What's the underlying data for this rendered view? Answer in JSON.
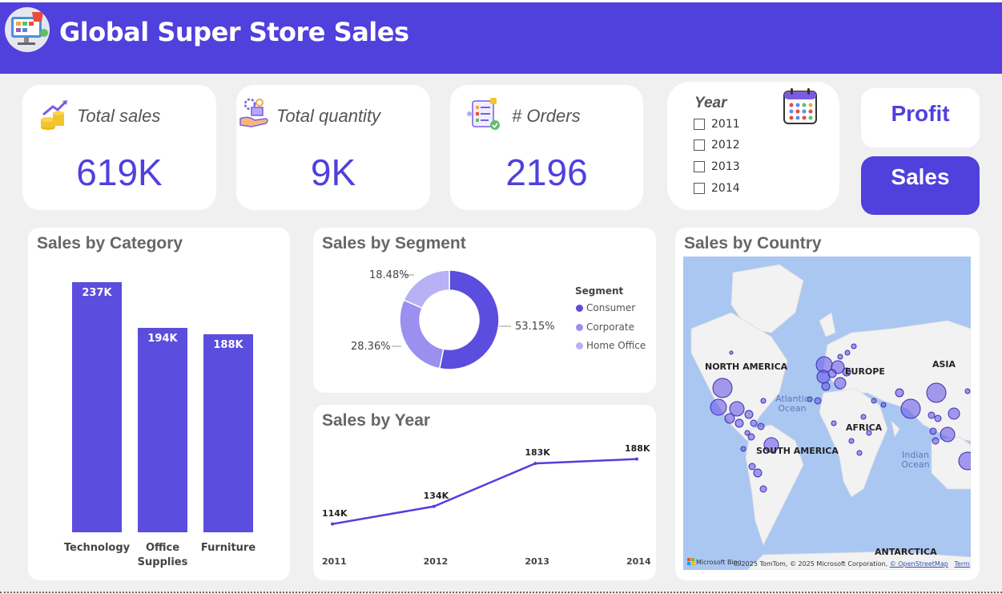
{
  "header": {
    "title": "Global Super Store Sales"
  },
  "kpis": [
    {
      "label": "Total sales",
      "value": "619K",
      "icon": "coins-growth-icon"
    },
    {
      "label": "Total quantity",
      "value": "9K",
      "icon": "hand-gears-icon"
    },
    {
      "label": "# Orders",
      "value": "2196",
      "icon": "clipboard-checklist-icon"
    }
  ],
  "year_filter": {
    "title": "Year",
    "icon": "calendar-icon",
    "options": [
      "2011",
      "2012",
      "2013",
      "2014"
    ]
  },
  "buttons": {
    "profit": "Profit",
    "sales": "Sales"
  },
  "colors": {
    "accent": "#5040dc",
    "bar": "#5b4ddd",
    "consumer": "#5b4ddd",
    "corporate": "#9b8ff0",
    "home_office": "#b9b1f5"
  },
  "chart_data": [
    {
      "type": "bar",
      "title": "Sales by Category",
      "categories": [
        "Technology",
        "Office Supplies",
        "Furniture"
      ],
      "category_display": [
        [
          "Technology"
        ],
        [
          "Office",
          "Supplies"
        ],
        [
          "Furniture"
        ]
      ],
      "values": [
        237,
        194,
        188
      ],
      "value_labels": [
        "237K",
        "194K",
        "188K"
      ],
      "ylim": [
        0,
        260
      ]
    },
    {
      "type": "pie",
      "title": "Sales by Segment",
      "legend_title": "Segment",
      "labels": [
        "Consumer",
        "Corporate",
        "Home Office"
      ],
      "values": [
        53.15,
        28.36,
        18.48
      ],
      "value_labels": [
        "53.15%",
        "28.36%",
        "18.48%"
      ]
    },
    {
      "type": "line",
      "title": "Sales by Year",
      "x": [
        "2011",
        "2012",
        "2013",
        "2014"
      ],
      "values": [
        114,
        134,
        183,
        188
      ],
      "value_labels": [
        "114K",
        "134K",
        "183K",
        "188K"
      ],
      "ylim": [
        100,
        195
      ]
    }
  ],
  "map": {
    "title": "Sales by Country",
    "labels": {
      "north_america": "NORTH AMERICA",
      "europe": "EUROPE",
      "asia": "ASIA",
      "africa": "AFRICA",
      "south_america": "SOUTH AMERICA",
      "antarctica": "ANTARCTICA",
      "atlantic_1": "Atlantic",
      "atlantic_2": "Ocean",
      "indian_1": "Indian",
      "indian_2": "Ocean"
    },
    "attribution": {
      "brand": "Microsoft Bing",
      "text": "© 2025 TomTom, © 2025 Microsoft Corporation, ",
      "osm": "© OpenStreetMap",
      "terms": "Terms"
    }
  }
}
